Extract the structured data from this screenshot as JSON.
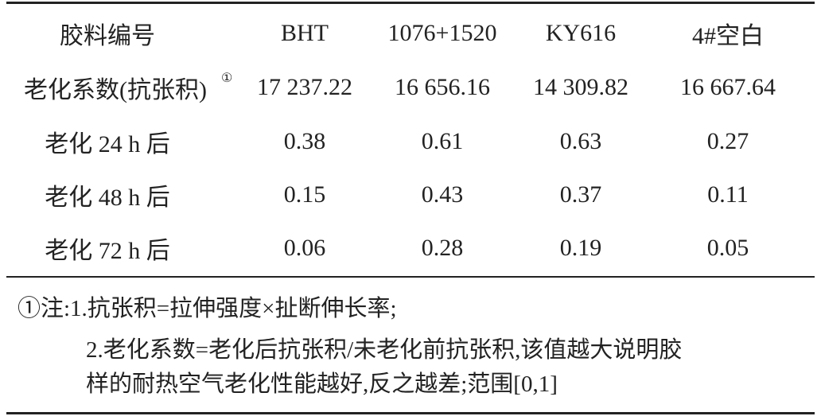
{
  "table": {
    "header": [
      "胶料编号",
      "BHT",
      "1076+1520",
      "KY616",
      "4#空白"
    ],
    "rows": [
      [
        "老化系数(抗张积)",
        "17 237.22",
        "16 656.16",
        "14 309.82",
        "16 667.64"
      ],
      [
        "老化 24 h 后",
        "0.38",
        "0.61",
        "0.63",
        "0.27"
      ],
      [
        "老化 48 h 后",
        "0.15",
        "0.43",
        "0.37",
        "0.11"
      ],
      [
        "老化 72 h 后",
        "0.06",
        "0.28",
        "0.19",
        "0.05"
      ]
    ],
    "row_note_marker": "①"
  },
  "notes": {
    "lines": [
      "①注:1.抗张积=拉伸强度×扯断伸长率;",
      "2.老化系数=老化后抗张积/未老化前抗张积,该值越大说明胶",
      "样的耐热空气老化性能越好,反之越差;范围[0,1]"
    ]
  }
}
